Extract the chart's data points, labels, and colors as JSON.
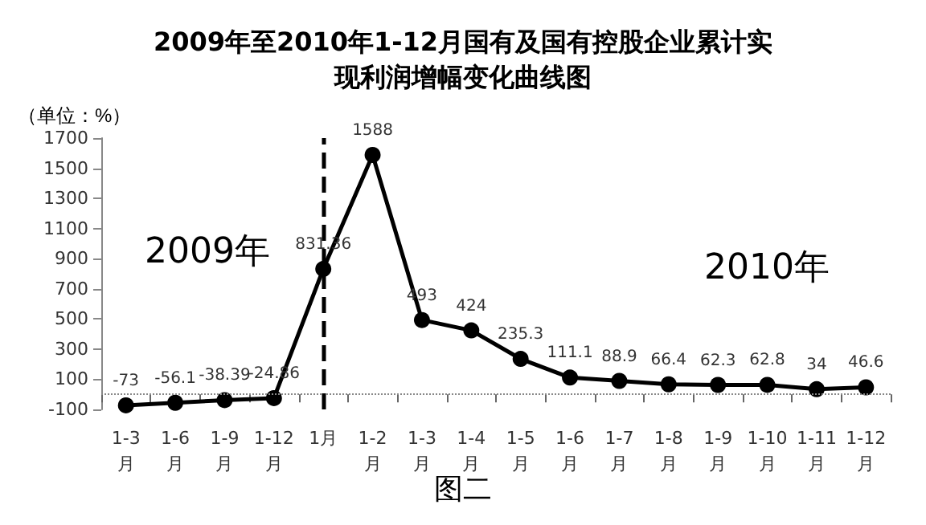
{
  "chart_data": {
    "type": "line",
    "title": "2009年至2010年1-12月国有及国有控股企业累计实现利润增幅变化曲线图",
    "ylabel": "（单位：%）",
    "categories": [
      "1-3月",
      "1-6月",
      "1-9月",
      "1-12月",
      "1月",
      "1-2月",
      "1-3月",
      "1-4月",
      "1-5月",
      "1-6月",
      "1-7月",
      "1-8月",
      "1-9月",
      "1-10月",
      "1-11月",
      "1-12月"
    ],
    "values": [
      -73,
      -56.1,
      -38.39,
      -24.86,
      831.36,
      1588,
      493,
      424,
      235.3,
      111.1,
      88.9,
      66.4,
      62.3,
      62.8,
      34,
      46.6
    ],
    "color": "#000000",
    "marker": "circle",
    "line_style": "solid",
    "data_labels": true,
    "ylim": [
      -100,
      1700
    ],
    "yticks": [
      -100,
      100,
      300,
      500,
      700,
      900,
      1100,
      1300,
      1500,
      1700
    ],
    "ref_lines": [
      {
        "axis": "y",
        "value": 0,
        "line_style": "dotted",
        "color": "#888888"
      }
    ],
    "annotations": [
      "2009年",
      "2010年",
      "图二"
    ]
  }
}
